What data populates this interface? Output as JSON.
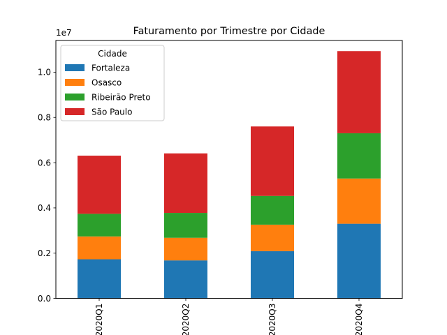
{
  "chart_data": {
    "type": "bar",
    "stacked": true,
    "title": "Faturamento por Trimestre por Cidade",
    "xlabel": "",
    "ylabel": "",
    "y_offset_label": "1e7",
    "categories": [
      "2020Q1",
      "2020Q2",
      "2020Q3",
      "2020Q4"
    ],
    "x_tick_rotation": "vertical",
    "ylim": [
      0,
      1.14
    ],
    "y_ticks": [
      0.0,
      0.2,
      0.4,
      0.6,
      0.8,
      1.0
    ],
    "y_tick_labels": [
      "0.0",
      "0.2",
      "0.4",
      "0.6",
      "0.8",
      "1.0"
    ],
    "grid": false,
    "legend": {
      "title": "Cidade",
      "placement": "top-left"
    },
    "series": [
      {
        "name": "Fortaleza",
        "color": "#1f77b4",
        "values": [
          0.173,
          0.168,
          0.209,
          0.33
        ]
      },
      {
        "name": "Osasco",
        "color": "#ff7f0e",
        "values": [
          0.101,
          0.1,
          0.117,
          0.2
        ]
      },
      {
        "name": "Ribeirão Preto",
        "color": "#2ca02c",
        "values": [
          0.1,
          0.11,
          0.127,
          0.2
        ]
      },
      {
        "name": "São Paulo",
        "color": "#d62728",
        "values": [
          0.257,
          0.263,
          0.307,
          0.363
        ]
      }
    ]
  }
}
